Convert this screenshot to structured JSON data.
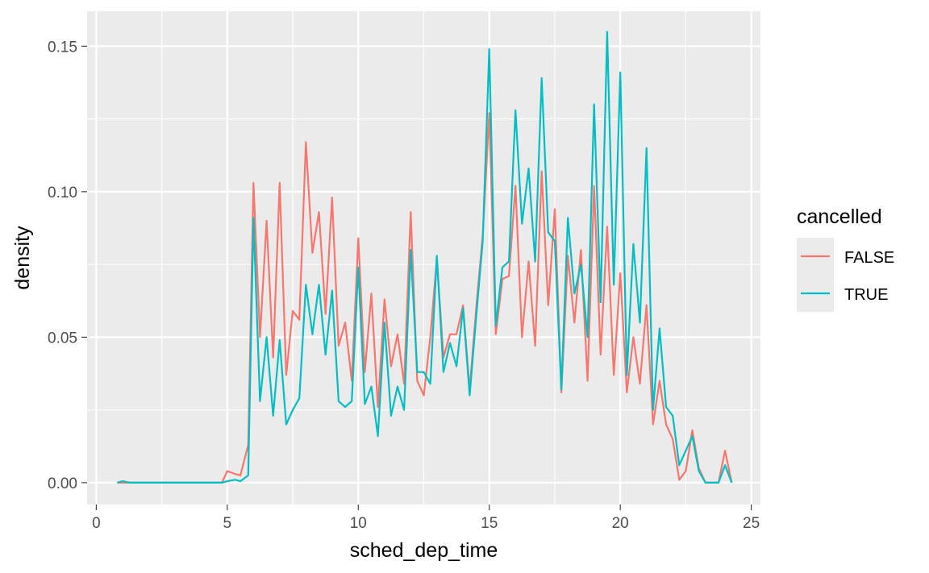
{
  "chart_data": {
    "type": "line",
    "title": "",
    "xlabel": "sched_dep_time",
    "ylabel": "density",
    "xlim": [
      -0.35,
      25.35
    ],
    "ylim": [
      -0.0075,
      0.162
    ],
    "x_ticks": [
      0,
      5,
      10,
      15,
      20,
      25
    ],
    "x_tick_labels": [
      "0",
      "5",
      "10",
      "15",
      "20",
      "25"
    ],
    "y_ticks": [
      0,
      0.05,
      0.1,
      0.15
    ],
    "y_tick_labels": [
      "0.00",
      "0.05",
      "0.10",
      "0.15"
    ],
    "grid": true,
    "legend": {
      "title": "cancelled",
      "position": "right"
    },
    "series": [
      {
        "name": "FALSE",
        "color": "#F8766D",
        "x": [
          0.8,
          1.0,
          1.3,
          1.5,
          1.8,
          2.0,
          2.3,
          2.5,
          2.8,
          3.0,
          3.3,
          3.5,
          3.8,
          4.0,
          4.3,
          4.5,
          4.8,
          5.0,
          5.3,
          5.5,
          5.8,
          6.0,
          6.25,
          6.5,
          6.75,
          7.0,
          7.25,
          7.5,
          7.75,
          8.0,
          8.25,
          8.5,
          8.75,
          9.0,
          9.25,
          9.5,
          9.75,
          10.0,
          10.25,
          10.5,
          10.75,
          11.0,
          11.25,
          11.5,
          11.75,
          12.0,
          12.25,
          12.5,
          12.75,
          13.0,
          13.25,
          13.5,
          13.75,
          14.0,
          14.25,
          14.5,
          14.75,
          15.0,
          15.25,
          15.5,
          15.75,
          16.0,
          16.25,
          16.5,
          16.75,
          17.0,
          17.25,
          17.5,
          17.75,
          18.0,
          18.25,
          18.5,
          18.75,
          19.0,
          19.25,
          19.5,
          19.75,
          20.0,
          20.25,
          20.5,
          20.75,
          21.0,
          21.25,
          21.5,
          21.75,
          22.0,
          22.25,
          22.5,
          22.75,
          23.0,
          23.25,
          23.5,
          23.75,
          24.0,
          24.25
        ],
        "values": [
          0.0,
          0.0,
          0.0,
          0.0,
          0.0,
          0.0,
          0.0,
          0.0,
          0.0,
          0.0,
          0.0,
          0.0,
          0.0,
          0.0,
          0.0,
          0.0,
          0.0,
          0.004,
          0.003,
          0.0025,
          0.013,
          0.103,
          0.05,
          0.09,
          0.043,
          0.103,
          0.037,
          0.059,
          0.056,
          0.117,
          0.079,
          0.093,
          0.058,
          0.098,
          0.047,
          0.055,
          0.035,
          0.084,
          0.038,
          0.065,
          0.026,
          0.063,
          0.04,
          0.051,
          0.034,
          0.093,
          0.035,
          0.03,
          0.05,
          0.077,
          0.043,
          0.051,
          0.051,
          0.061,
          0.032,
          0.06,
          0.085,
          0.127,
          0.051,
          0.07,
          0.071,
          0.102,
          0.05,
          0.076,
          0.047,
          0.107,
          0.061,
          0.094,
          0.031,
          0.078,
          0.055,
          0.08,
          0.035,
          0.102,
          0.044,
          0.088,
          0.037,
          0.072,
          0.031,
          0.05,
          0.034,
          0.061,
          0.02,
          0.035,
          0.02,
          0.015,
          0.001,
          0.004,
          0.018,
          0.005,
          0.0,
          0.0,
          0.0,
          0.011,
          0.0
        ]
      },
      {
        "name": "TRUE",
        "color": "#00BFC4",
        "x": [
          0.8,
          1.0,
          1.3,
          1.5,
          1.8,
          2.0,
          2.3,
          2.5,
          2.8,
          3.0,
          3.3,
          3.5,
          3.8,
          4.0,
          4.3,
          4.5,
          4.8,
          5.0,
          5.3,
          5.5,
          5.8,
          6.0,
          6.25,
          6.5,
          6.75,
          7.0,
          7.25,
          7.5,
          7.75,
          8.0,
          8.25,
          8.5,
          8.75,
          9.0,
          9.25,
          9.5,
          9.75,
          10.0,
          10.25,
          10.5,
          10.75,
          11.0,
          11.25,
          11.5,
          11.75,
          12.0,
          12.25,
          12.5,
          12.75,
          13.0,
          13.25,
          13.5,
          13.75,
          14.0,
          14.25,
          14.5,
          14.75,
          15.0,
          15.25,
          15.5,
          15.75,
          16.0,
          16.25,
          16.5,
          16.75,
          17.0,
          17.25,
          17.5,
          17.75,
          18.0,
          18.25,
          18.5,
          18.75,
          19.0,
          19.25,
          19.5,
          19.75,
          20.0,
          20.25,
          20.5,
          20.75,
          21.0,
          21.25,
          21.5,
          21.75,
          22.0,
          22.25,
          22.5,
          22.75,
          23.0,
          23.25,
          23.5,
          23.75,
          24.0,
          24.25
        ],
        "values": [
          0.0,
          0.0005,
          0.0,
          0.0,
          0.0,
          0.0,
          0.0,
          0.0,
          0.0,
          0.0,
          0.0,
          0.0,
          0.0,
          0.0,
          0.0,
          0.0,
          0.0,
          0.0005,
          0.001,
          0.0005,
          0.0025,
          0.091,
          0.028,
          0.05,
          0.023,
          0.049,
          0.02,
          0.025,
          0.029,
          0.068,
          0.051,
          0.068,
          0.044,
          0.066,
          0.028,
          0.026,
          0.028,
          0.074,
          0.027,
          0.033,
          0.016,
          0.055,
          0.023,
          0.033,
          0.025,
          0.08,
          0.038,
          0.038,
          0.034,
          0.078,
          0.038,
          0.048,
          0.04,
          0.06,
          0.03,
          0.057,
          0.083,
          0.149,
          0.054,
          0.074,
          0.076,
          0.128,
          0.089,
          0.108,
          0.076,
          0.139,
          0.086,
          0.083,
          0.032,
          0.091,
          0.065,
          0.075,
          0.05,
          0.13,
          0.062,
          0.155,
          0.068,
          0.141,
          0.037,
          0.082,
          0.055,
          0.115,
          0.025,
          0.053,
          0.026,
          0.023,
          0.006,
          0.011,
          0.016,
          0.004,
          0.0,
          0.0,
          0.0,
          0.006,
          0.0
        ]
      }
    ]
  }
}
